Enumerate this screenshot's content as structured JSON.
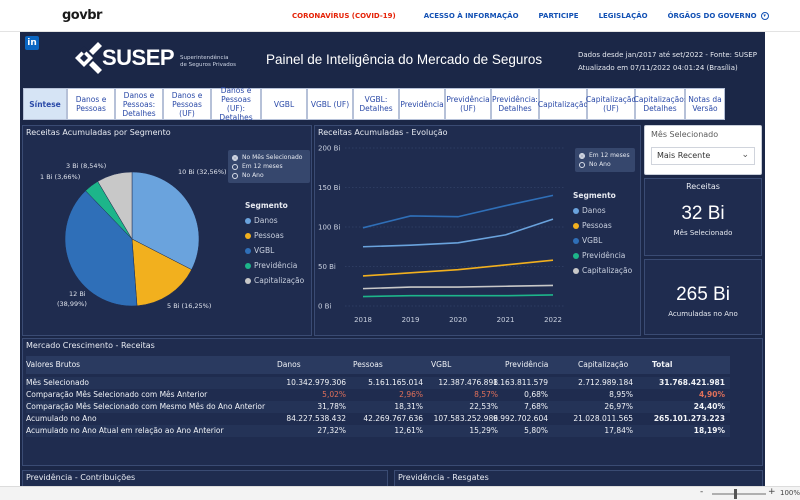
{
  "govbar": {
    "logo": "govbr",
    "links": [
      "CORONAVÍRUS (COVID-19)",
      "ACESSO À INFORMAÇÃO",
      "PARTICIPE",
      "LEGISLAÇÃO",
      "ÓRGÃOS DO GOVERNO"
    ]
  },
  "header": {
    "linkedin": "in",
    "brand": "SUSEP",
    "brand_sub_1": "Superintendência",
    "brand_sub_2": "de Seguros Privados",
    "title": "Painel de Inteligência do Mercado de Seguros",
    "info_1": "Dados desde jan/2017 até set/2022 - Fonte: SUSEP",
    "info_2": "Atualizado em 07/11/2022 04:01:24 (Brasília)"
  },
  "tabs": [
    {
      "l1": "Síntese",
      "l2": "",
      "l3": ""
    },
    {
      "l1": "Danos e",
      "l2": "Pessoas",
      "l3": ""
    },
    {
      "l1": "Danos e",
      "l2": "Pessoas:",
      "l3": "Detalhes"
    },
    {
      "l1": "Danos e",
      "l2": "Pessoas (UF)",
      "l3": ""
    },
    {
      "l1": "Danos e",
      "l2": "Pessoas (UF):",
      "l3": "Detalhes"
    },
    {
      "l1": "VGBL",
      "l2": "",
      "l3": ""
    },
    {
      "l1": "VGBL (UF)",
      "l2": "",
      "l3": ""
    },
    {
      "l1": "VGBL:",
      "l2": "Detalhes",
      "l3": ""
    },
    {
      "l1": "Previdência",
      "l2": "",
      "l3": ""
    },
    {
      "l1": "Previdência",
      "l2": "(UF)",
      "l3": ""
    },
    {
      "l1": "Previdência:",
      "l2": "Detalhes",
      "l3": ""
    },
    {
      "l1": "Capitalização",
      "l2": "",
      "l3": ""
    },
    {
      "l1": "Capitalização",
      "l2": "(UF)",
      "l3": ""
    },
    {
      "l1": "Capitalização:",
      "l2": "Detalhes",
      "l3": ""
    },
    {
      "l1": "Notas da",
      "l2": "Versão",
      "l3": ""
    }
  ],
  "period_options": [
    "No Mês Selecionado",
    "Em 12 meses",
    "No Ano"
  ],
  "segment_legend": {
    "title": "Segmento",
    "items": [
      "Danos",
      "Pessoas",
      "VGBL",
      "Previdência",
      "Capitalização"
    ]
  },
  "colors": {
    "danos": "#6aa3dd",
    "pessoas": "#f2b01e",
    "vgbl": "#2f6fb8",
    "previdencia": "#1db58a",
    "capitalizacao": "#c8c8c8"
  },
  "pie": {
    "title": "Receitas Acumuladas por Segmento",
    "labels": [
      "10 Bi (32,56%)",
      "5 Bi (16,25%)",
      "12 Bi",
      "(38,99%)",
      "1 Bi (3,66%)",
      "3 Bi (8,54%)"
    ]
  },
  "chart_data": [
    {
      "type": "pie",
      "title": "Receitas Acumuladas por Segmento",
      "categories": [
        "Danos",
        "Pessoas",
        "VGBL",
        "Previdência",
        "Capitalização"
      ],
      "values": [
        10,
        5,
        12,
        1,
        3
      ],
      "percent": [
        32.56,
        16.25,
        38.99,
        3.66,
        8.54
      ]
    },
    {
      "type": "line",
      "title": "Receitas Acumuladas - Evolução",
      "x": [
        "2018",
        "2019",
        "2020",
        "2021",
        "2022"
      ],
      "ylim": [
        0,
        200
      ],
      "yticks": [
        "0 Bi",
        "50 Bi",
        "100 Bi",
        "150 Bi",
        "200 Bi"
      ],
      "series": [
        {
          "name": "VGBL",
          "values": [
            99,
            114,
            113,
            127,
            140
          ]
        },
        {
          "name": "Danos",
          "values": [
            75,
            77,
            80,
            90,
            110
          ]
        },
        {
          "name": "Pessoas",
          "values": [
            38,
            42,
            46,
            52,
            58
          ]
        },
        {
          "name": "Capitalização",
          "values": [
            22,
            24,
            24,
            25,
            26
          ]
        },
        {
          "name": "Previdência",
          "values": [
            12,
            13,
            13,
            13,
            14
          ]
        }
      ]
    }
  ],
  "filter": {
    "label": "Mês Selecionado",
    "value": "Mais Recente"
  },
  "kpi": {
    "receitas_title": "Receitas",
    "receitas_value": "32 Bi",
    "receitas_sub": "Mês Selecionado",
    "acum_value": "265 Bi",
    "acum_sub": "Acumuladas no Ano"
  },
  "table": {
    "title": "Mercado Crescimento - Receitas",
    "headers": [
      "Valores Brutos",
      "Danos",
      "Pessoas",
      "VGBL",
      "Previdência",
      "Capitalização",
      "Total"
    ],
    "rows": [
      [
        "Mês Selecionado",
        "10.342.979.306",
        "5.161.165.014",
        "12.387.476.898",
        "1.163.811.579",
        "2.712.989.184",
        "31.768.421.981"
      ],
      [
        "Comparação Mês Selecionado com Mês Anterior",
        "5,02%",
        "2,96%",
        "8,57%",
        "0,68%",
        "8,95%",
        "4,90%"
      ],
      [
        "Comparação Mês Selecionado com Mesmo Mês do Ano Anterior",
        "31,78%",
        "18,31%",
        "22,53%",
        "7,68%",
        "26,97%",
        "24,40%"
      ],
      [
        "Acumulado no Ano",
        "84.227.538.432",
        "42.269.767.636",
        "107.583.252.986",
        "9.992.702.604",
        "21.028.011.565",
        "265.101.273.223"
      ],
      [
        "Acumulado no Ano Atual em relação ao Ano Anterior",
        "27,32%",
        "12,61%",
        "15,29%",
        "5,80%",
        "17,84%",
        "18,19%"
      ]
    ]
  },
  "bottom": {
    "left_title": "Previdência - Contribuições",
    "right_title": "Previdência - Resgates"
  },
  "zoom": {
    "minus": "-",
    "plus": "+",
    "pct": "100%"
  }
}
